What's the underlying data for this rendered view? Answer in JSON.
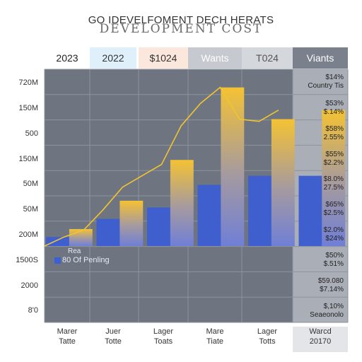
{
  "header": {
    "top_line": "GO IDEVELFOMENT DECH HERATS",
    "title": "DEVELOPMENT COST"
  },
  "tabs": [
    "2023",
    "2022",
    "$1024",
    "Wants",
    "T024",
    "Viants"
  ],
  "y_labels": [
    "720M",
    "150M",
    "500",
    "150M",
    "50M",
    "50M",
    "200M",
    "1500S",
    "2000",
    "8'0"
  ],
  "right_labels": [
    [
      "$14%",
      "Country Tis"
    ],
    [
      "$53%",
      "$.14%"
    ],
    [
      "$58%",
      "2.55%"
    ],
    [
      "$55%",
      "$2.2%"
    ],
    [
      "$8.0%",
      "27.5%"
    ],
    [
      "$65%",
      "$2.5%"
    ],
    [
      "$2.0%",
      "$24%"
    ],
    [
      "$50%",
      "$.51%"
    ],
    [
      "$59.080",
      "$7.14%"
    ],
    [
      "$,10%",
      "Seaeonolo"
    ]
  ],
  "x_labels": [
    [
      "Marer",
      "Tatte"
    ],
    [
      "Juer",
      "Totte"
    ],
    [
      "Lager",
      "Toats"
    ],
    [
      "Mare",
      "Tiate"
    ],
    [
      "Lager",
      "Totts"
    ],
    [
      "Warcd",
      "20170"
    ]
  ],
  "legend": {
    "line1": "Rea",
    "line2": "80 Of Penling"
  },
  "colors": {
    "grid_dark": "#6e7480",
    "grid_light": "#a9aeb7",
    "grid_line": "#8e939c",
    "bar_blue": "#3f5fcf",
    "bar_gold": "#f4c233",
    "line": "#f1c531",
    "legend_swatch": "#3b5fd6"
  },
  "chart_data": {
    "type": "bar",
    "title": "DEVELOPMENT COST",
    "subtitle": "GO IDEVELFOMENT DECH HERATS",
    "series": [
      {
        "values": [
          0.4,
          1.2,
          1.7,
          2.7,
          3.1,
          3.1
        ]
      },
      {
        "values": [
          0.75,
          2.0,
          3.8,
          7.0,
          5.6,
          6.0
        ]
      }
    ],
    "line": [
      0.0,
      0.4,
      0.7,
      1.6,
      2.6,
      3.1,
      3.6,
      5.3,
      6.3,
      7.0,
      5.6,
      5.5,
      6.0
    ],
    "ylim": [
      0,
      7.8
    ],
    "grid": true
  }
}
